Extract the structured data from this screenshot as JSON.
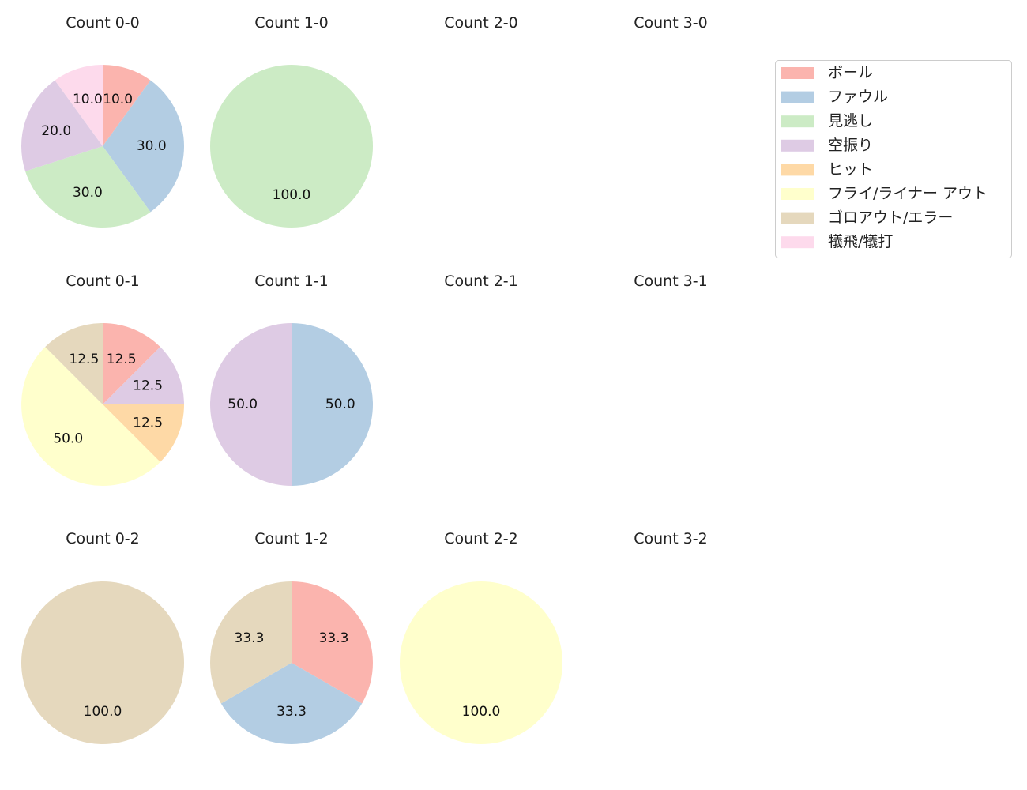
{
  "chart_data": [
    {
      "type": "pie",
      "title": "Count 0-0",
      "values": [
        10,
        30,
        30,
        20,
        0,
        0,
        0,
        10
      ],
      "labels": [
        "10.0",
        "30.0",
        "30.0",
        "20.0",
        "",
        "",
        "",
        "10.0"
      ]
    },
    {
      "type": "pie",
      "title": "Count 1-0",
      "values": [
        0,
        0,
        100,
        0,
        0,
        0,
        0,
        0
      ],
      "labels": [
        "",
        "",
        "100.0",
        "",
        "",
        "",
        "",
        ""
      ]
    },
    {
      "type": "pie",
      "title": "Count 2-0",
      "values": [],
      "labels": []
    },
    {
      "type": "pie",
      "title": "Count 3-0",
      "values": [],
      "labels": []
    },
    {
      "type": "pie",
      "title": "Count 0-1",
      "values": [
        12.5,
        0,
        0,
        12.5,
        12.5,
        50,
        12.5,
        0
      ],
      "labels": [
        "12.5",
        "",
        "",
        "12.5",
        "12.5",
        "50.0",
        "12.5",
        ""
      ]
    },
    {
      "type": "pie",
      "title": "Count 1-1",
      "values": [
        0,
        50,
        0,
        50,
        0,
        0,
        0,
        0
      ],
      "labels": [
        "",
        "50.0",
        "",
        "50.0",
        "",
        "",
        "",
        ""
      ]
    },
    {
      "type": "pie",
      "title": "Count 2-1",
      "values": [],
      "labels": []
    },
    {
      "type": "pie",
      "title": "Count 3-1",
      "values": [],
      "labels": []
    },
    {
      "type": "pie",
      "title": "Count 0-2",
      "values": [
        0,
        0,
        0,
        0,
        0,
        0,
        100,
        0
      ],
      "labels": [
        "",
        "",
        "",
        "",
        "",
        "",
        "100.0",
        ""
      ]
    },
    {
      "type": "pie",
      "title": "Count 1-2",
      "values": [
        33.3,
        33.3,
        0,
        0,
        0,
        0,
        33.3,
        0
      ],
      "labels": [
        "33.3",
        "33.3",
        "",
        "",
        "",
        "",
        "33.3",
        ""
      ]
    },
    {
      "type": "pie",
      "title": "Count 2-2",
      "values": [
        0,
        0,
        0,
        0,
        0,
        100,
        0,
        0
      ],
      "labels": [
        "",
        "",
        "",
        "",
        "",
        "100.0",
        "",
        ""
      ]
    },
    {
      "type": "pie",
      "title": "Count 3-2",
      "values": [],
      "labels": []
    }
  ],
  "legend": {
    "placement": "top-right",
    "entries": [
      "ボール",
      "ファウル",
      "見逃し",
      "空振り",
      "ヒット",
      "フライ/ライナー アウト",
      "ゴロアウト/エラー",
      "犠飛/犠打"
    ],
    "colors": [
      "#fbb4ae",
      "#b3cde3",
      "#ccebc5",
      "#decbe4",
      "#fed9a6",
      "#ffffcc",
      "#e5d8bd",
      "#fddaec"
    ]
  },
  "start_angle": "top, clockwise"
}
